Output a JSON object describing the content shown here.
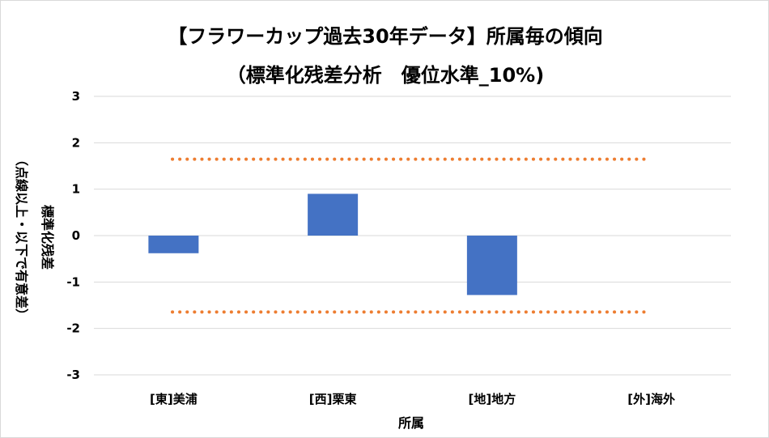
{
  "chart_data": {
    "type": "bar",
    "title": "【フラワーカップ過去30年データ】所属毎の傾向",
    "subtitle": "（標準化残差分析　優位水準_10%)",
    "xlabel": "所属",
    "ylabel": "標準化残差",
    "ylabel_note": "（点線以上・以下で有意差）",
    "categories": [
      "[東]美浦",
      "[西]栗東",
      "[地]地方",
      "[外]海外"
    ],
    "values": [
      -0.38,
      0.9,
      -1.28,
      0
    ],
    "ylim": [
      -3,
      3
    ],
    "yticks": [
      "3",
      "2",
      "1",
      "0",
      "-1",
      "-2",
      "-3"
    ],
    "threshold_upper": 1.645,
    "threshold_lower": -1.645,
    "grid": true,
    "legend": "none",
    "colors": {
      "bar": "#4472C4",
      "threshold": "#ED7D31",
      "grid": "#d9d9d9"
    }
  }
}
